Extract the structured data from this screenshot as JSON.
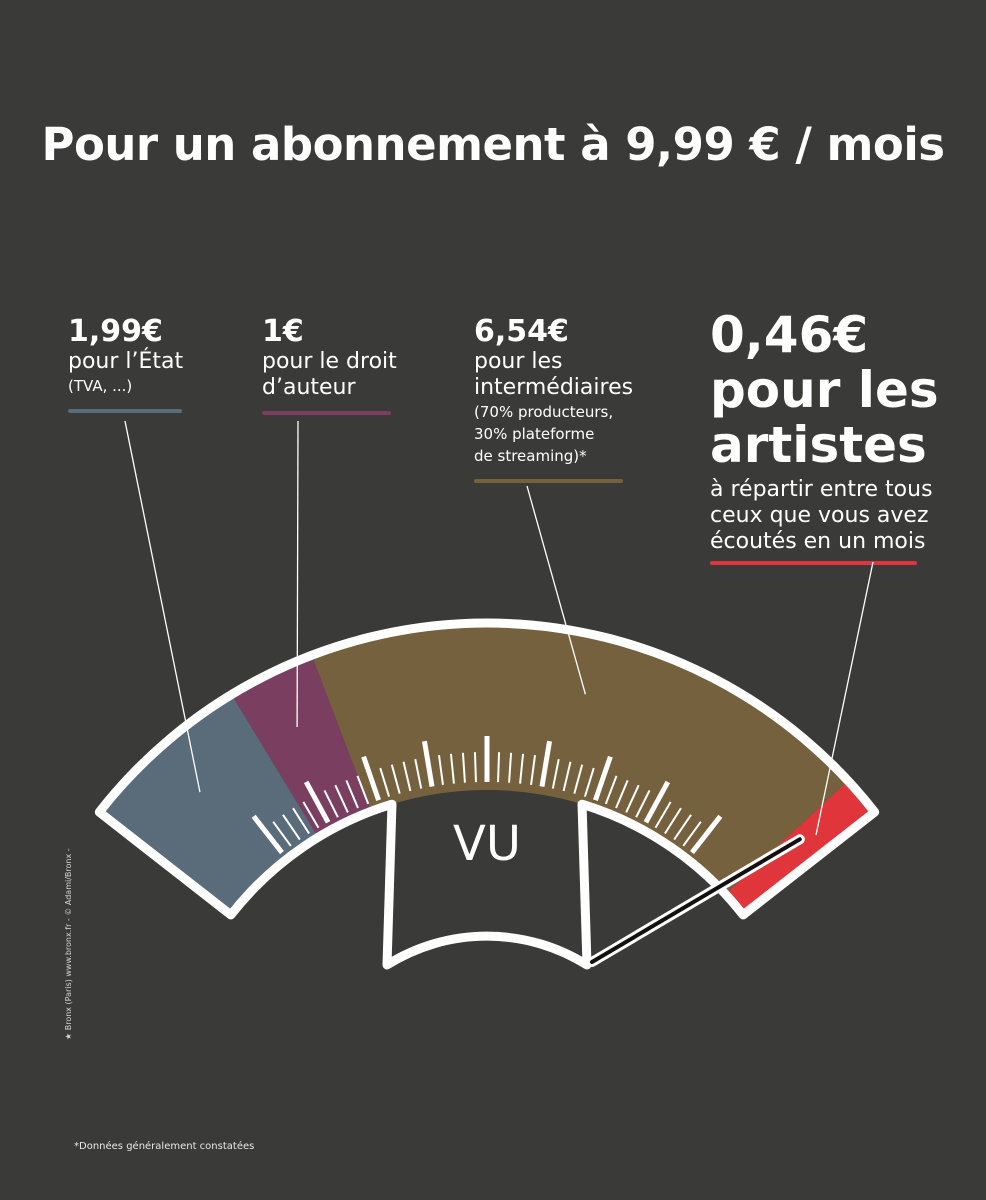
{
  "title": "Pour un abonnement à 9,99 € / mois",
  "segments": [
    {
      "id": "state",
      "amount": "1,99€",
      "description": "pour l’État",
      "note": "(TVA, ...)",
      "value": 1.99,
      "color": "#5a6b79"
    },
    {
      "id": "author",
      "amount": "1€",
      "description_lines": [
        "pour le droit",
        "d’auteur"
      ],
      "value": 1.0,
      "color": "#7a3f60"
    },
    {
      "id": "intermediaries",
      "amount": "6,54€",
      "description_lines": [
        "pour les",
        "intermédiaires"
      ],
      "note_lines": [
        "(70% producteurs,",
        "30% plateforme",
        "de streaming)*"
      ],
      "value": 6.54,
      "color": "#76613f"
    },
    {
      "id": "artists",
      "amount": "0,46€",
      "title_lines": [
        "pour les",
        "artistes"
      ],
      "description_lines": [
        "à répartir entre tous",
        "ceux que vous avez",
        "écoutés en un mois"
      ],
      "value": 0.46,
      "color": "#e0353a"
    }
  ],
  "gauge": {
    "label": "VU",
    "total": 9.99
  },
  "footnote": "*Données généralement constatées",
  "credit": "★ Bronx (Paris) www.bronx.fr - © Adami/Bronx -"
}
